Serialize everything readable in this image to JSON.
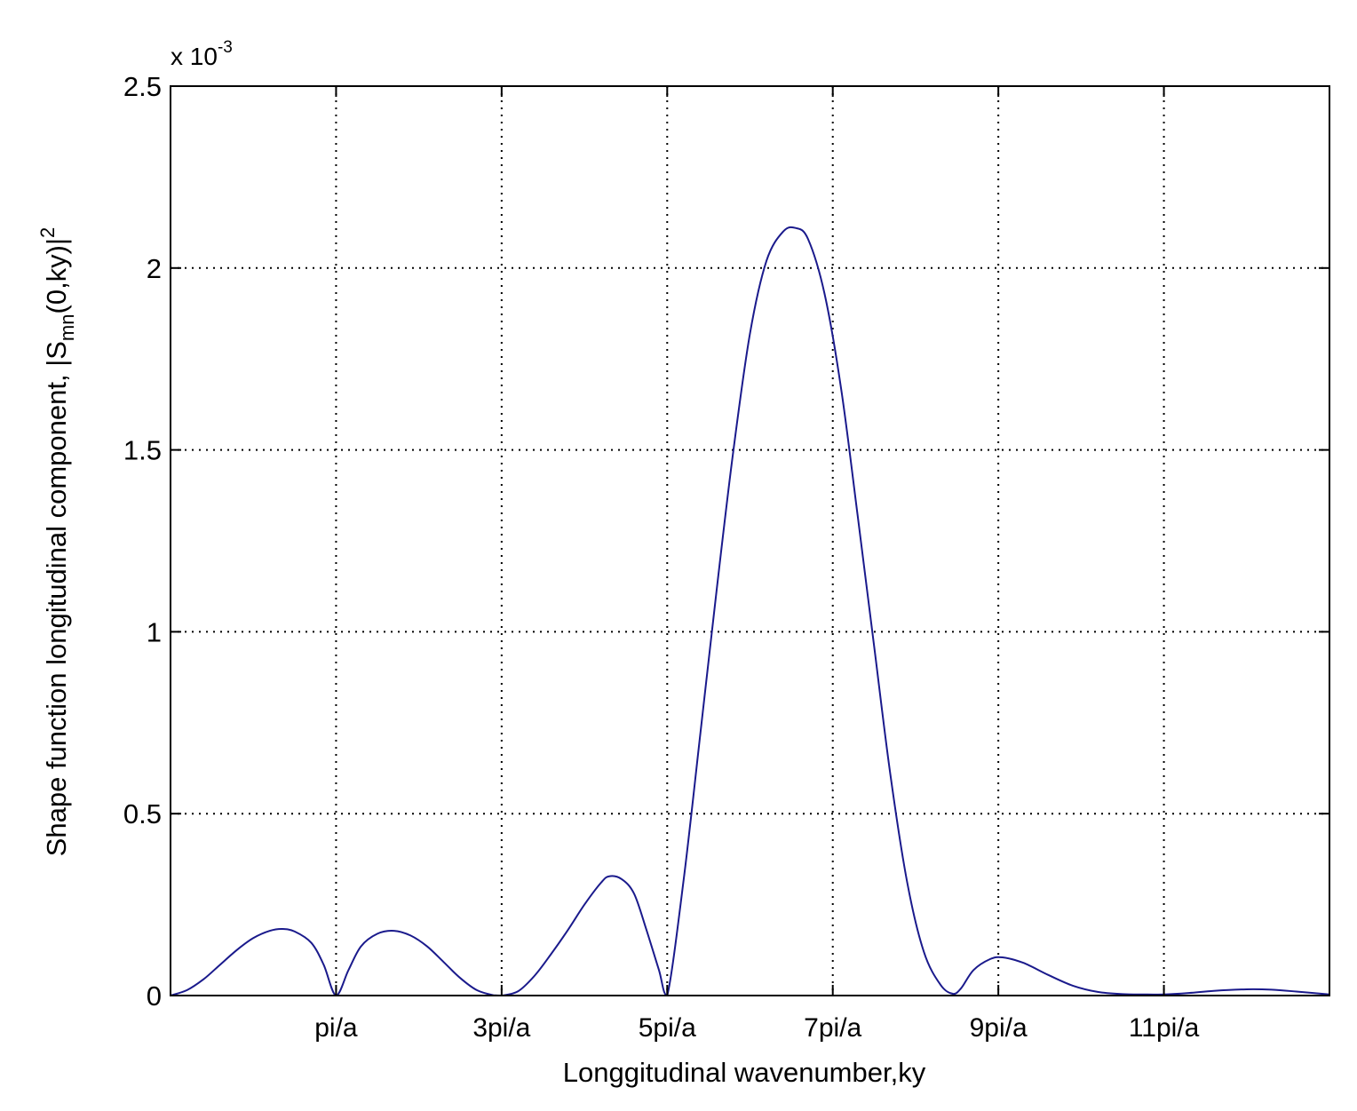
{
  "chart_data": {
    "type": "line",
    "xlabel": "Longgitudinal wavenumber,ky",
    "ylabel": {
      "prefix": "Shape function longitudinal component, |S",
      "subscript": "mn",
      "middle": "(0,ky)|",
      "superscript": "2"
    },
    "y_multiplier": {
      "base": "x 10",
      "exponent": "-3"
    },
    "xlim": [
      0,
      14
    ],
    "ylim": [
      0,
      2.5
    ],
    "x_unit": "pi/a",
    "grid": true,
    "x_ticks": [
      {
        "value": 2,
        "label": "pi/a"
      },
      {
        "value": 4,
        "label": "3pi/a"
      },
      {
        "value": 6,
        "label": "5pi/a"
      },
      {
        "value": 8,
        "label": "7pi/a"
      },
      {
        "value": 10,
        "label": "9pi/a"
      },
      {
        "value": 12,
        "label": "11pi/a"
      }
    ],
    "y_ticks": [
      {
        "value": 0,
        "label": "0"
      },
      {
        "value": 0.5,
        "label": "0.5"
      },
      {
        "value": 1,
        "label": "1"
      },
      {
        "value": 1.5,
        "label": "1.5"
      },
      {
        "value": 2,
        "label": "2"
      },
      {
        "value": 2.5,
        "label": "2.5"
      }
    ],
    "series": [
      {
        "color": "#1a1a8c",
        "points": [
          [
            0.0,
            0.0
          ],
          [
            0.2,
            0.015
          ],
          [
            0.4,
            0.045
          ],
          [
            0.6,
            0.085
          ],
          [
            0.8,
            0.125
          ],
          [
            1.0,
            0.158
          ],
          [
            1.2,
            0.178
          ],
          [
            1.35,
            0.183
          ],
          [
            1.5,
            0.176
          ],
          [
            1.7,
            0.145
          ],
          [
            1.85,
            0.085
          ],
          [
            2.0,
            0.0
          ],
          [
            2.15,
            0.07
          ],
          [
            2.3,
            0.135
          ],
          [
            2.5,
            0.17
          ],
          [
            2.7,
            0.178
          ],
          [
            2.9,
            0.165
          ],
          [
            3.1,
            0.135
          ],
          [
            3.3,
            0.092
          ],
          [
            3.5,
            0.048
          ],
          [
            3.7,
            0.015
          ],
          [
            3.9,
            0.001
          ],
          [
            4.0,
            0.0
          ],
          [
            4.2,
            0.012
          ],
          [
            4.4,
            0.055
          ],
          [
            4.6,
            0.115
          ],
          [
            4.8,
            0.18
          ],
          [
            5.0,
            0.25
          ],
          [
            5.2,
            0.31
          ],
          [
            5.3,
            0.328
          ],
          [
            5.45,
            0.32
          ],
          [
            5.6,
            0.28
          ],
          [
            5.75,
            0.18
          ],
          [
            5.9,
            0.07
          ],
          [
            6.0,
            0.0
          ],
          [
            6.2,
            0.32
          ],
          [
            6.4,
            0.72
          ],
          [
            6.6,
            1.12
          ],
          [
            6.8,
            1.5
          ],
          [
            7.0,
            1.82
          ],
          [
            7.2,
            2.02
          ],
          [
            7.4,
            2.1
          ],
          [
            7.55,
            2.11
          ],
          [
            7.7,
            2.08
          ],
          [
            7.9,
            1.93
          ],
          [
            8.1,
            1.67
          ],
          [
            8.3,
            1.32
          ],
          [
            8.5,
            0.96
          ],
          [
            8.7,
            0.6
          ],
          [
            8.9,
            0.31
          ],
          [
            9.1,
            0.12
          ],
          [
            9.3,
            0.03
          ],
          [
            9.45,
            0.005
          ],
          [
            9.55,
            0.02
          ],
          [
            9.7,
            0.07
          ],
          [
            9.9,
            0.1
          ],
          [
            10.05,
            0.105
          ],
          [
            10.3,
            0.09
          ],
          [
            10.6,
            0.057
          ],
          [
            10.9,
            0.027
          ],
          [
            11.2,
            0.01
          ],
          [
            11.5,
            0.004
          ],
          [
            11.8,
            0.003
          ],
          [
            12.0,
            0.003
          ],
          [
            12.3,
            0.007
          ],
          [
            12.6,
            0.013
          ],
          [
            13.0,
            0.017
          ],
          [
            13.3,
            0.016
          ],
          [
            13.6,
            0.011
          ],
          [
            14.0,
            0.003
          ]
        ]
      }
    ]
  }
}
